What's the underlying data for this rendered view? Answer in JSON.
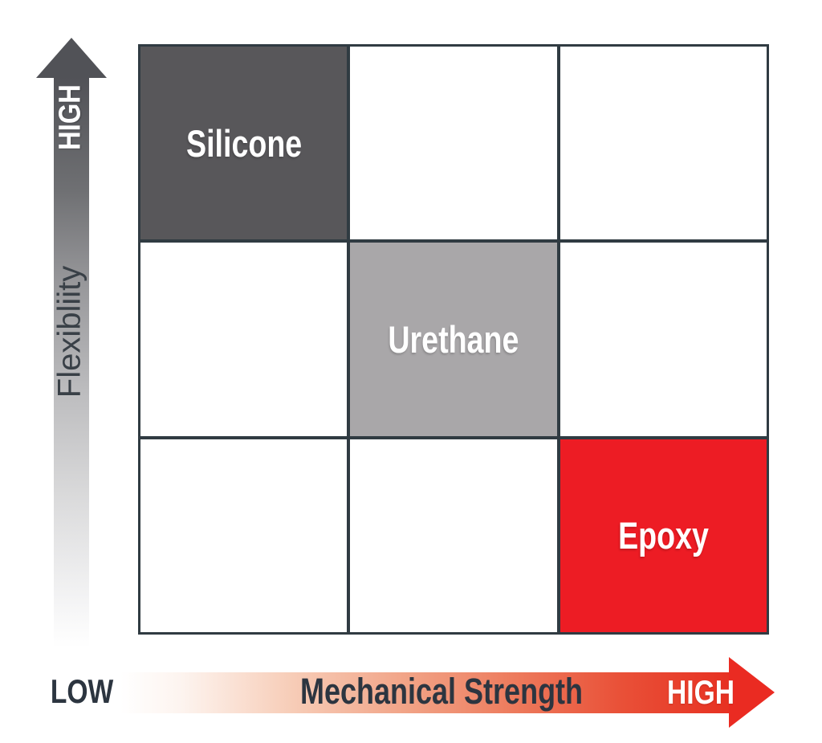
{
  "figure": {
    "type": "positioning-matrix",
    "rows": 3,
    "cols": 3,
    "cells": [
      {
        "row": 1,
        "col": 1,
        "label": "Silicone",
        "color": "#58575a",
        "text_color": "#ffffff"
      },
      {
        "row": 2,
        "col": 2,
        "label": "Urethane",
        "color": "#a9a7a9",
        "text_color": "#ffffff"
      },
      {
        "row": 3,
        "col": 3,
        "label": "Epoxy",
        "color": "#ed1c24",
        "text_color": "#ffffff"
      }
    ]
  },
  "y_axis": {
    "label": "Flexibliity",
    "high_label": "HIGH",
    "direction": "up",
    "gradient_from": "#ffffff",
    "gradient_to": "#515257"
  },
  "x_axis": {
    "label": "Mechanical Strength",
    "low_label": "LOW",
    "high_label": "HIGH",
    "direction": "right",
    "gradient_from": "#ffffff",
    "gradient_to": "#e73424"
  },
  "colors": {
    "background": "#ffffff",
    "grid_line": "#303b42",
    "dark_cell": "#58575a",
    "mid_cell": "#a9a7a9",
    "accent_red": "#ed1c24",
    "text_dark": "#2c3540",
    "text_light": "#ffffff"
  }
}
